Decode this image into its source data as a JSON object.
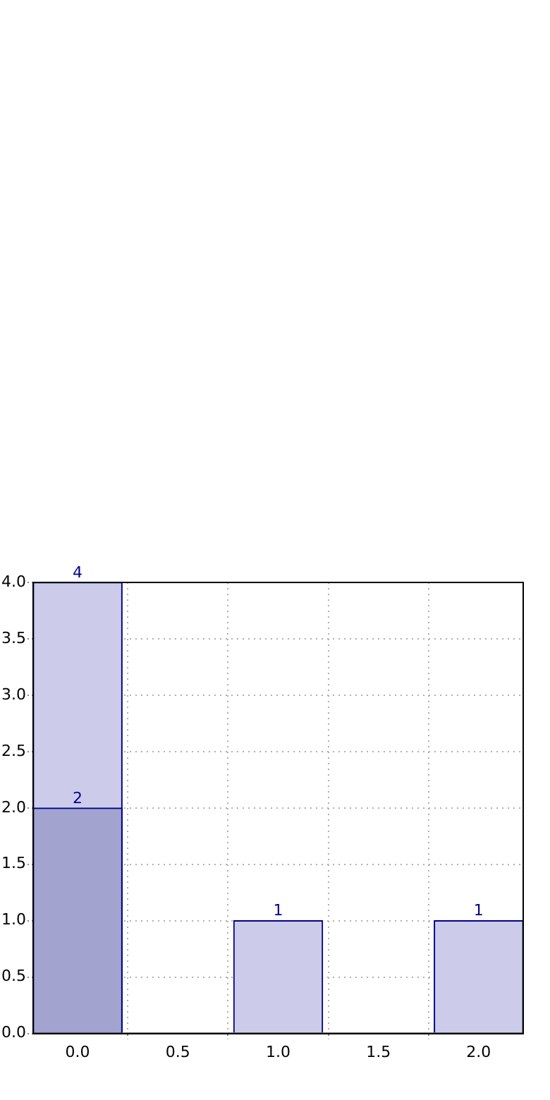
{
  "chart_data": {
    "type": "bar",
    "x": [
      0,
      1,
      2
    ],
    "series": [
      {
        "color": "#ccccea",
        "values": [
          4,
          1,
          1
        ]
      },
      {
        "color": "#a3a3d0",
        "values": [
          2,
          null,
          null
        ]
      }
    ],
    "xlim": [
      -0.222,
      2.222
    ],
    "xticks": [
      {
        "value": 0,
        "label": "0.0"
      },
      {
        "value": 0.5,
        "label": "0.5"
      },
      {
        "value": 1,
        "label": "1.0"
      },
      {
        "value": 1.5,
        "label": "1.5"
      },
      {
        "value": 2,
        "label": "2.0"
      }
    ],
    "ylim": [
      0,
      4
    ],
    "yticks": [
      {
        "value": 0,
        "label": "0.0"
      },
      {
        "value": 0.5,
        "label": "0.5"
      },
      {
        "value": 1,
        "label": "1.0"
      },
      {
        "value": 1.5,
        "label": "1.5"
      },
      {
        "value": 2,
        "label": "2.0"
      },
      {
        "value": 2.5,
        "label": "2.5"
      },
      {
        "value": 3,
        "label": "3.0"
      },
      {
        "value": 3.5,
        "label": "3.5"
      },
      {
        "value": 4,
        "label": "4.0"
      }
    ],
    "grid": true,
    "data_labels": true
  }
}
